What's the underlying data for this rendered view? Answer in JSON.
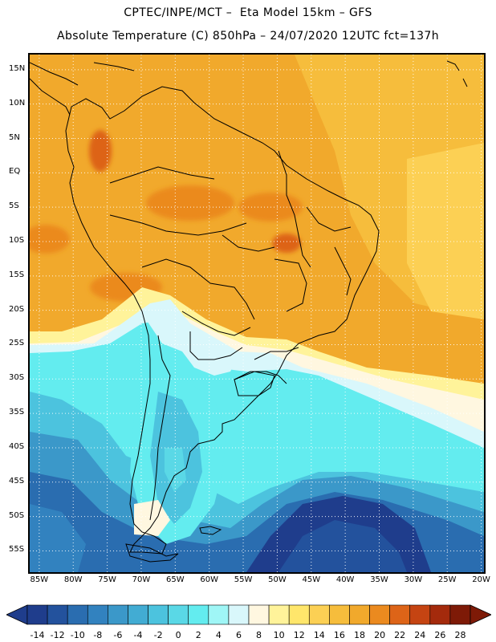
{
  "header": {
    "line1": "CPTEC/INPE/MCT –  Eta Model 15km – GFS",
    "line2": "Absolute Temperature (C) 850hPa – 24/07/2020 12UTC fct=137h"
  },
  "map": {
    "lat_labels": [
      "15N",
      "10N",
      "5N",
      "EQ",
      "5S",
      "10S",
      "15S",
      "20S",
      "25S",
      "30S",
      "35S",
      "40S",
      "45S",
      "50S",
      "55S"
    ],
    "lon_labels": [
      "85W",
      "80W",
      "75W",
      "70W",
      "65W",
      "60W",
      "55W",
      "50W",
      "45W",
      "40W",
      "35W",
      "30W",
      "25W",
      "20W"
    ],
    "gridlines": "dotted"
  },
  "colorbar": {
    "labels": [
      "-14",
      "-12",
      "-10",
      "-8",
      "-6",
      "-4",
      "-2",
      "0",
      "2",
      "4",
      "6",
      "8",
      "10",
      "12",
      "14",
      "16",
      "18",
      "20",
      "22",
      "24",
      "26",
      "28"
    ],
    "colors": [
      "#1f3d8c",
      "#23529d",
      "#2a6db0",
      "#3282bf",
      "#3b98c9",
      "#42acd3",
      "#4cc3de",
      "#5ad8e6",
      "#63ecef",
      "#9ff6f6",
      "#d9f7fb",
      "#fff7e0",
      "#fff39a",
      "#ffe66b",
      "#fcd054",
      "#f6bd3c",
      "#f1a92c",
      "#eb8a1f",
      "#dd6418",
      "#c54412",
      "#a42a0c",
      "#7e1a07"
    ],
    "under_color": "#1f3d8c",
    "over_color": "#7e1a07"
  }
}
